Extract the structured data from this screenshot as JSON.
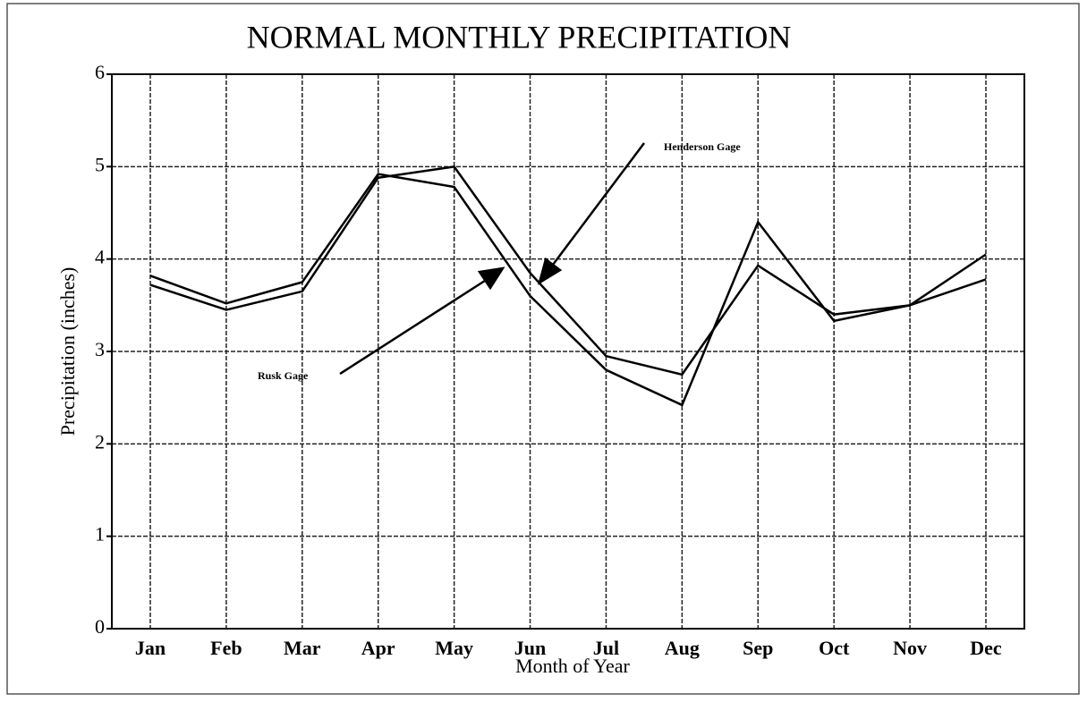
{
  "chart_data": {
    "type": "line",
    "title": "NORMAL MONTHLY PRECIPITATION",
    "x_label": "Month of Year",
    "y_label": "Precipitation (inches)",
    "categories": [
      "Jan",
      "Feb",
      "Mar",
      "Apr",
      "May",
      "Jun",
      "Jul",
      "Aug",
      "Sep",
      "Oct",
      "Nov",
      "Dec"
    ],
    "series": [
      {
        "name": "Henderson Gage",
        "color": "#000000",
        "values": [
          3.72,
          3.45,
          3.65,
          4.88,
          5.0,
          3.85,
          2.95,
          2.75,
          3.93,
          3.4,
          3.5,
          4.05
        ]
      },
      {
        "name": "Rusk Gage",
        "color": "#000000",
        "values": [
          3.82,
          3.52,
          3.75,
          4.92,
          4.78,
          3.6,
          2.8,
          2.42,
          4.4,
          3.33,
          3.5,
          3.78
        ]
      }
    ],
    "ylim": [
      0,
      6
    ],
    "yticks": [
      0,
      1,
      2,
      3,
      4,
      5,
      6
    ],
    "grid": true
  }
}
